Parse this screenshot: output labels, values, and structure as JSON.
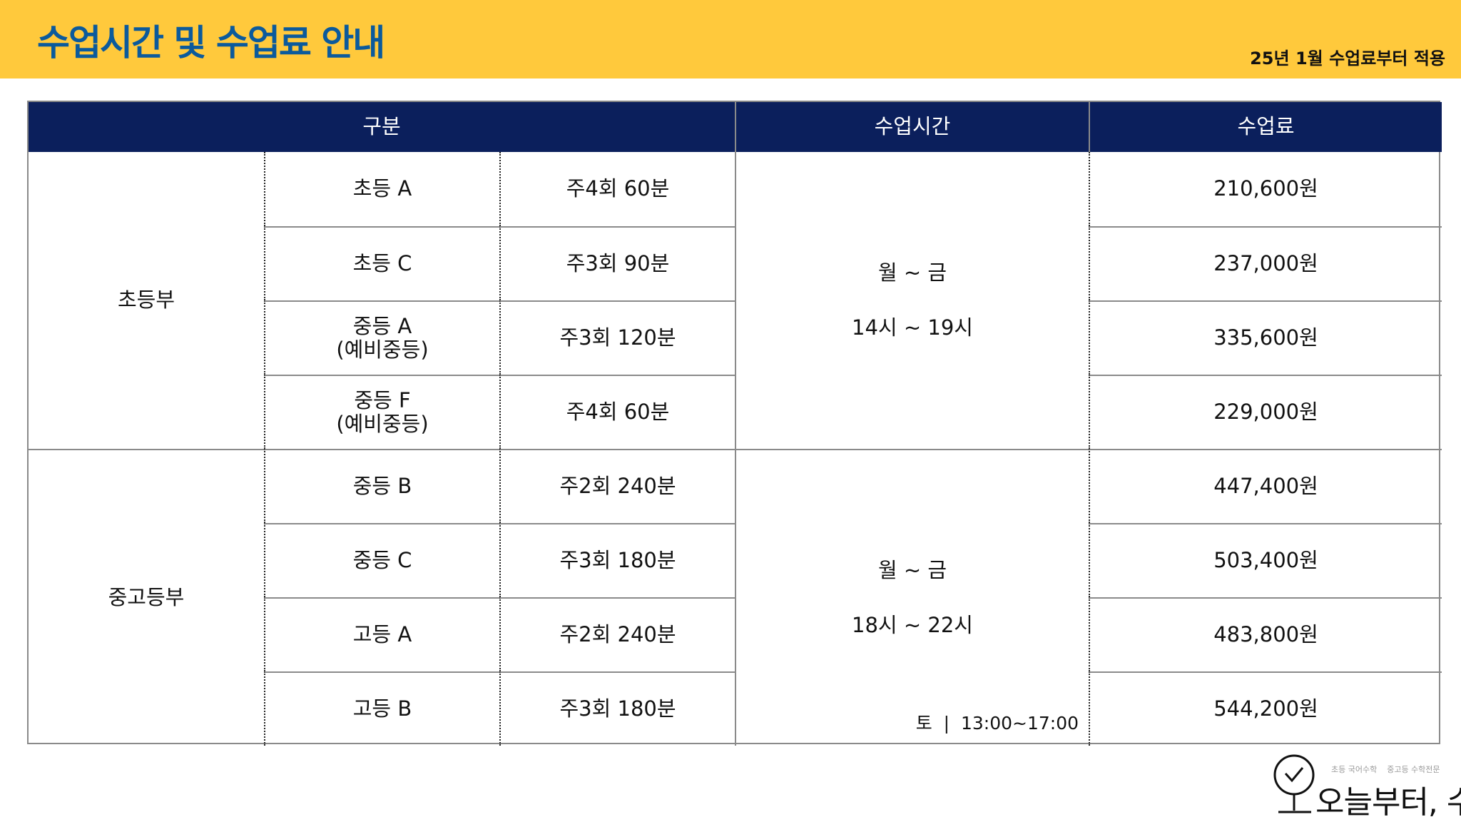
{
  "header": {
    "title": "수업시간 및 수업료 안내",
    "note": "25년 1월 수업료부터 적용",
    "colors": {
      "bar": "#FFC93C",
      "title": "#0b5a9c",
      "table_header": "#0b1f5c"
    }
  },
  "table": {
    "columns": [
      "구분",
      "수업시간",
      "수업료"
    ],
    "groups": [
      {
        "name": "초등부",
        "days": "월 ~ 금",
        "hours": "14시 ~ 19시",
        "extra": ""
      },
      {
        "name": "중고등부",
        "days": "월 ~ 금",
        "hours": "18시 ~ 22시",
        "extra": "토  |  13:00~17:00"
      }
    ],
    "rows": [
      {
        "course": "초등 A",
        "schedule": "주4회 60분",
        "fee": "210,600원"
      },
      {
        "course": "초등 C",
        "schedule": "주3회 90분",
        "fee": "237,000원"
      },
      {
        "course": "중등 A\n(예비중등)",
        "schedule": "주3회 120분",
        "fee": "335,600원"
      },
      {
        "course": "중등 F\n(예비중등)",
        "schedule": "주4회 60분",
        "fee": "229,000원"
      },
      {
        "course": "중등 B",
        "schedule": "주2회 240분",
        "fee": "447,400원"
      },
      {
        "course": "중등 C",
        "schedule": "주3회 180분",
        "fee": "503,400원"
      },
      {
        "course": "고등 A",
        "schedule": "주2회 240분",
        "fee": "483,800원"
      },
      {
        "course": "고등 B",
        "schedule": "주3회 180분",
        "fee": "544,200원"
      }
    ]
  },
  "logo": {
    "tagline": "초등 국어수학    중고등 수학전문",
    "name": "오늘부터, 수학"
  }
}
